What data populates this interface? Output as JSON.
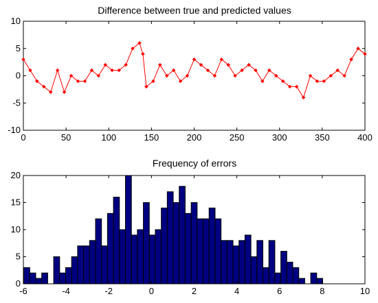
{
  "chart_data": [
    {
      "type": "line",
      "title": "Difference between true and predicted values",
      "xlabel": "",
      "ylabel": "",
      "xlim": [
        0,
        400
      ],
      "ylim": [
        -10,
        10
      ],
      "xticks": [
        "0",
        "50",
        "100",
        "150",
        "200",
        "250",
        "300",
        "350",
        "400"
      ],
      "yticks": [
        "10",
        "5",
        "0",
        "-5",
        "-10"
      ],
      "grid": false,
      "colors": {
        "line": "#ff0000",
        "marker": "#ff0000"
      },
      "series": [
        {
          "marker": "diamond",
          "x": [
            0,
            8,
            16,
            24,
            32,
            40,
            48,
            56,
            64,
            72,
            80,
            88,
            96,
            104,
            112,
            120,
            128,
            136,
            140,
            144,
            152,
            160,
            168,
            176,
            184,
            192,
            200,
            208,
            216,
            224,
            232,
            240,
            248,
            256,
            264,
            272,
            280,
            288,
            296,
            304,
            312,
            320,
            328,
            336,
            344,
            352,
            360,
            368,
            376,
            384,
            392,
            400
          ],
          "y": [
            3,
            1,
            -1,
            -2,
            -3,
            1,
            -3,
            0,
            -1,
            -1,
            1,
            0,
            2,
            1,
            1,
            2,
            5,
            6,
            4,
            -2,
            -1,
            2,
            0,
            1,
            -1,
            0,
            3,
            2,
            1,
            0,
            3,
            2,
            0,
            1,
            2,
            1,
            -1,
            1,
            0,
            -1,
            -2,
            -2,
            -4,
            0,
            -1,
            -1,
            0,
            1,
            0,
            3,
            5,
            4
          ]
        }
      ]
    },
    {
      "type": "bar",
      "title": "Frequency of errors",
      "xlabel": "",
      "ylabel": "",
      "xlim": [
        -6,
        10
      ],
      "ylim": [
        0,
        20
      ],
      "xticks": [
        "-6",
        "-4",
        "-2",
        "0",
        "2",
        "4",
        "6",
        "8",
        "10"
      ],
      "yticks": [
        "20",
        "15",
        "10",
        "5",
        "0"
      ],
      "grid": false,
      "colors": {
        "bar_fill": "#000080",
        "bar_edge": "#000000"
      },
      "bin_width": 0.28,
      "categories": [
        -5.84,
        -5.56,
        -5.28,
        -5.0,
        -4.72,
        -4.44,
        -4.16,
        -3.88,
        -3.6,
        -3.32,
        -3.04,
        -2.76,
        -2.48,
        -2.2,
        -1.92,
        -1.64,
        -1.36,
        -1.08,
        -0.8,
        -0.52,
        -0.24,
        0.04,
        0.32,
        0.6,
        0.88,
        1.16,
        1.44,
        1.72,
        2.0,
        2.28,
        2.56,
        2.84,
        3.12,
        3.4,
        3.68,
        3.96,
        4.24,
        4.52,
        4.8,
        5.08,
        5.36,
        5.64,
        5.92,
        6.2,
        6.48,
        6.76,
        7.04,
        7.32,
        7.6,
        7.88
      ],
      "values": [
        3,
        2,
        1,
        2,
        0,
        5,
        2,
        3,
        5,
        7,
        7,
        8,
        12,
        7,
        13,
        16,
        10,
        20,
        9,
        10,
        15,
        9,
        10,
        14,
        17,
        15,
        18,
        13,
        15,
        12,
        12,
        14,
        12,
        8,
        8,
        7,
        8,
        9,
        5,
        8,
        3,
        8,
        2,
        6,
        4,
        3,
        1,
        0,
        2,
        1
      ]
    }
  ]
}
